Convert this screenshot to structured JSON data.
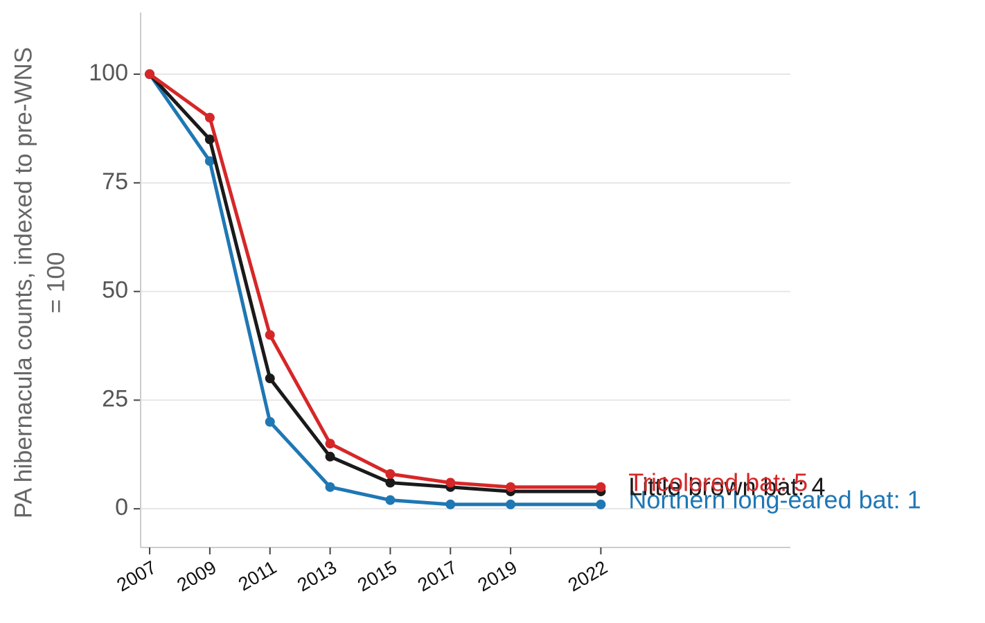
{
  "chart_data": {
    "type": "line",
    "ylabel": [
      "PA hibernacula counts, indexed to pre-WNS",
      "= 100"
    ],
    "x": [
      2007,
      2009,
      2011,
      2013,
      2015,
      2017,
      2019,
      2022
    ],
    "series": [
      {
        "name": "Northern long-eared bat: 1",
        "color": "#1f77b4",
        "values": [
          100,
          80,
          20,
          5,
          2,
          1,
          1,
          1
        ]
      },
      {
        "name": "Little brown bat: 4",
        "color": "#1a1a1a",
        "values": [
          100,
          85,
          30,
          12,
          6,
          5,
          4,
          4
        ]
      },
      {
        "name": "Tricolored bat: 5",
        "color": "#d62728",
        "values": [
          100,
          90,
          40,
          15,
          8,
          6,
          5,
          5
        ]
      }
    ],
    "xlim": [
      2006.7,
      2028.3
    ],
    "xticks": [
      2007,
      2009,
      2011,
      2013,
      2015,
      2017,
      2019,
      2022
    ],
    "ylim": [
      -8.9,
      114.2
    ],
    "yticks": [
      0,
      25,
      50,
      75,
      100
    ],
    "grid": true
  }
}
